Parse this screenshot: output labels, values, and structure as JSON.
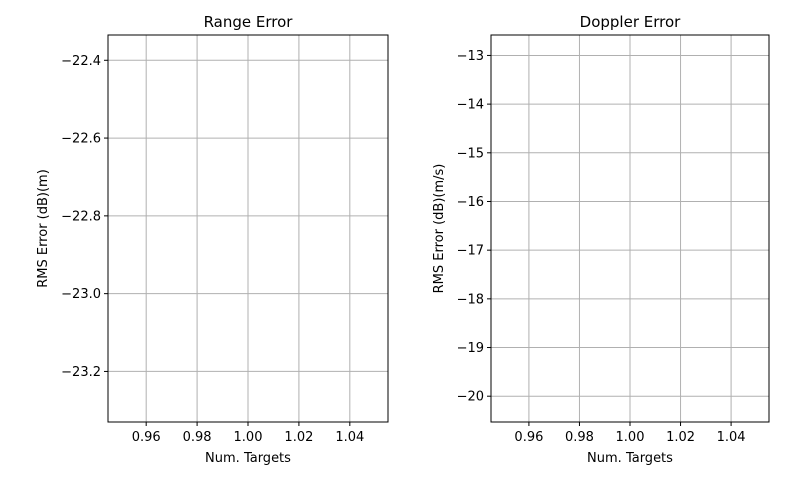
{
  "chart_data": [
    {
      "type": "line",
      "title": "Range Error",
      "xlabel": "Num. Targets",
      "ylabel": "RMS Error (dB)(m)",
      "xlim": [
        0.945,
        1.055
      ],
      "ylim": [
        -23.33,
        -22.335
      ],
      "xticks": [
        0.96,
        0.98,
        1.0,
        1.02,
        1.04
      ],
      "xtick_labels": [
        "0.96",
        "0.98",
        "1.00",
        "1.02",
        "1.04"
      ],
      "yticks": [
        -22.4,
        -22.6,
        -22.8,
        -23.0,
        -23.2
      ],
      "ytick_labels": [
        "−22.4",
        "−22.6",
        "−22.8",
        "−23.0",
        "−23.2"
      ],
      "grid": true,
      "series": []
    },
    {
      "type": "line",
      "title": "Doppler Error",
      "xlabel": "Num. Targets",
      "ylabel": "RMS Error (dB)(m/s)",
      "xlim": [
        0.945,
        1.055
      ],
      "ylim": [
        -20.53,
        -12.58
      ],
      "xticks": [
        0.96,
        0.98,
        1.0,
        1.02,
        1.04
      ],
      "xtick_labels": [
        "0.96",
        "0.98",
        "1.00",
        "1.02",
        "1.04"
      ],
      "yticks": [
        -13,
        -14,
        -15,
        -16,
        -17,
        -18,
        -19,
        -20
      ],
      "ytick_labels": [
        "−13",
        "−14",
        "−15",
        "−16",
        "−17",
        "−18",
        "−19",
        "−20"
      ],
      "grid": true,
      "series": []
    }
  ]
}
